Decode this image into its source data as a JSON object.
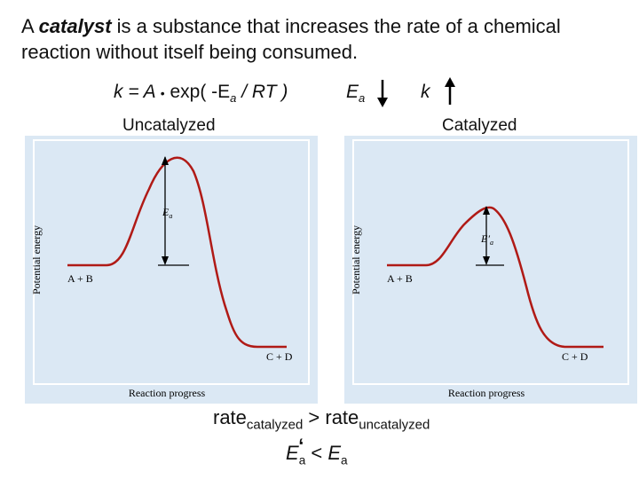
{
  "intro": {
    "prefix": "A ",
    "term": "catalyst",
    "rest": " is a substance that increases the rate of a chemical reaction without itself being consumed."
  },
  "formula": {
    "lhs": "k = A",
    "dot": "•",
    "exp": " exp( -E",
    "sub": "a",
    "tail": " / RT )"
  },
  "trends": {
    "ea_symbol": "E",
    "ea_sub": "a",
    "k_symbol": "k"
  },
  "panels": {
    "uncatalyzed": {
      "title": "Uncatalyzed",
      "y_axis": "Potential energy",
      "x_axis": "Reaction progress",
      "reactant": "A + B",
      "product": "C + D",
      "barrier_label": "E",
      "barrier_sub": "a"
    },
    "catalyzed": {
      "title": "Catalyzed",
      "y_axis": "Potential energy",
      "x_axis": "Reaction progress",
      "reactant": "A + B",
      "product": "C + D",
      "barrier_label": "E",
      "barrier_sub": "a",
      "barrier_prime": "′"
    }
  },
  "comparison": {
    "rate_word_1": "rate",
    "rate_sub_1": "catalyzed",
    "op": " > ",
    "rate_word_2": "rate",
    "rate_sub_2": "uncatalyzed"
  },
  "inequality": {
    "e1": "E",
    "e1_sub": "a",
    "e1_prime": "‘",
    "op": "< ",
    "e2": "E",
    "e2_sub": "a"
  },
  "colors": {
    "panel_bg": "#dbe8f4",
    "curve": "#b01a16",
    "arrow": "#000000"
  }
}
